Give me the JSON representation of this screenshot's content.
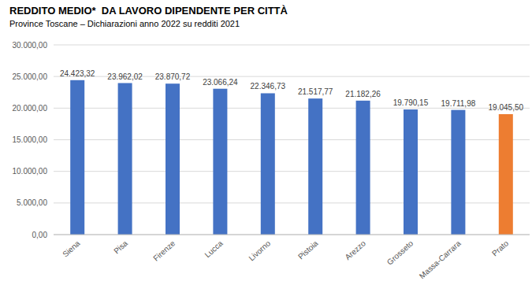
{
  "chart_data": {
    "type": "bar",
    "title": "REDDITO MEDIO*  DA LAVORO DIPENDENTE PER CITTÀ",
    "subtitle": "Province Toscane – Dichiarazioni anno 2022 su redditi 2021",
    "categories": [
      "Siena",
      "Pisa",
      "Firenze",
      "Lucca",
      "Livorno",
      "Pistoia",
      "Arezzo",
      "Grosseto",
      "Massa-Carrara",
      "Prato"
    ],
    "values": [
      24423.32,
      23962.02,
      23870.72,
      23066.24,
      22346.73,
      21517.77,
      21182.26,
      19790.15,
      19711.98,
      19045.5
    ],
    "value_labels": [
      "24.423,32",
      "23.962,02",
      "23.870,72",
      "23.066,24",
      "22.346,73",
      "21.517,77",
      "21.182,26",
      "19.790,15",
      "19.711,98",
      "19.045,50"
    ],
    "colors": [
      "#4472c4",
      "#4472c4",
      "#4472c4",
      "#4472c4",
      "#4472c4",
      "#4472c4",
      "#4472c4",
      "#4472c4",
      "#4472c4",
      "#ed7d31"
    ],
    "ylim": [
      0,
      30000
    ],
    "yticks": [
      {
        "value": 0,
        "label": "0,00"
      },
      {
        "value": 5000,
        "label": "5.000,00"
      },
      {
        "value": 10000,
        "label": "10.000,00"
      },
      {
        "value": 15000,
        "label": "15.000,00"
      },
      {
        "value": 20000,
        "label": "20.000,00"
      },
      {
        "value": 25000,
        "label": "25.000,00"
      },
      {
        "value": 30000,
        "label": "30.000,00"
      }
    ],
    "grid": true,
    "data_labels": true
  }
}
